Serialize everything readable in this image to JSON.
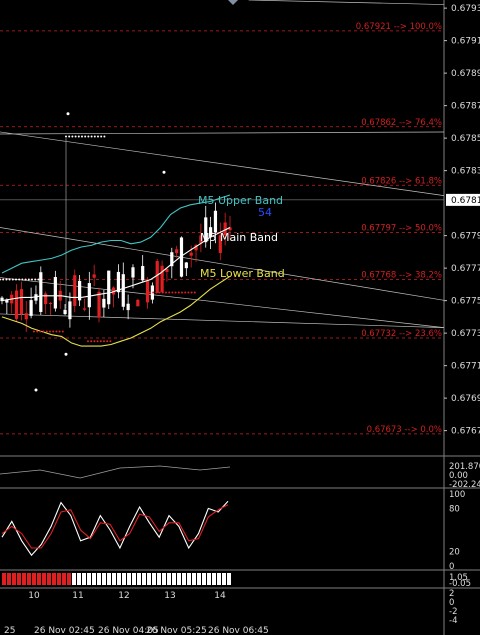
{
  "colors": {
    "background": "#000000",
    "grid": "#c0c0c0",
    "fib": "#d02020",
    "upper_band": "#3fc4c4",
    "main_band": "#ffffff",
    "lower_band": "#e6e04a",
    "candle_up": "#ffffff",
    "candle_down": "#e02020",
    "dots_white": "#ffffff",
    "dots_red": "#e02020",
    "stoch_main": "#ffffff",
    "stoch_signal": "#e02020",
    "bar_red": "#e02020",
    "bar_white": "#ffffff"
  },
  "chart_data": {
    "type": "line",
    "price_scale": [
      "0.67935",
      "0.67915",
      "0.67895",
      "0.67875",
      "0.67855",
      "0.67835",
      "0.67795",
      "0.67775",
      "0.67755",
      "0.67735",
      "0.67715",
      "0.67695",
      "0.67675"
    ],
    "current_price": "0.67817",
    "ylim": [
      0.6766,
      0.6794
    ],
    "fib_levels": [
      {
        "value": 0.67921,
        "label": "0.67921 --> 100.0%"
      },
      {
        "value": 0.67862,
        "label": "0.67862 --> 76.4%"
      },
      {
        "value": 0.67826,
        "label": "0.67826 --> 61.8%"
      },
      {
        "value": 0.67797,
        "label": "0.67797 --> 50.0%"
      },
      {
        "value": 0.67768,
        "label": "0.67768 --> 38.2%"
      },
      {
        "value": 0.67732,
        "label": "0.67732 --> 23.6%"
      },
      {
        "value": 0.67673,
        "label": "0.67673 --> 0.0%"
      }
    ],
    "band_labels": {
      "upper": "M5 Upper Band",
      "main": "M5 Main Band",
      "lower": "M5 Lower Band",
      "extra": "54"
    },
    "series": [
      {
        "name": "M5 Upper Band",
        "values": [
          0.67772,
          0.67775,
          0.67778,
          0.67779,
          0.6778,
          0.67781,
          0.67783,
          0.67786,
          0.67788,
          0.67789,
          0.67791,
          0.67792,
          0.67792,
          0.6779,
          0.67791,
          0.67794,
          0.678,
          0.67808,
          0.67812,
          0.67814,
          0.67815,
          0.67816,
          0.67818,
          0.6782
        ]
      },
      {
        "name": "M5 Main Band",
        "values": [
          0.67755,
          0.67756,
          0.67757,
          0.67757,
          0.67758,
          0.67758,
          0.67758,
          0.67757,
          0.67757,
          0.67758,
          0.67759,
          0.6776,
          0.67762,
          0.67764,
          0.67766,
          0.67768,
          0.67772,
          0.67777,
          0.67782,
          0.67786,
          0.6779,
          0.67794,
          0.67797,
          0.678
        ]
      },
      {
        "name": "M5 Lower Band",
        "values": [
          0.67745,
          0.67743,
          0.67741,
          0.67738,
          0.67736,
          0.67734,
          0.67733,
          0.67729,
          0.67727,
          0.67727,
          0.67727,
          0.67728,
          0.6773,
          0.67732,
          0.67735,
          0.67738,
          0.67742,
          0.67745,
          0.67748,
          0.67752,
          0.67757,
          0.67762,
          0.67766,
          0.6777
        ]
      }
    ],
    "stoch_scale": [
      "100",
      "80",
      "20",
      "0"
    ],
    "stoch_main": [
      40,
      62,
      35,
      15,
      30,
      55,
      88,
      70,
      35,
      40,
      70,
      50,
      25,
      55,
      82,
      60,
      40,
      70,
      55,
      25,
      45,
      80,
      75,
      90
    ],
    "stoch_signal": [
      45,
      55,
      45,
      25,
      25,
      45,
      75,
      78,
      50,
      38,
      60,
      58,
      35,
      45,
      72,
      68,
      48,
      60,
      60,
      35,
      38,
      68,
      78,
      85
    ],
    "indicator_values": [
      "201.8707",
      "0.00",
      "-202.2415"
    ],
    "bar_labels": [
      "1.05",
      "-0.05"
    ],
    "bottom_labels": [
      "2",
      "0",
      "-2",
      "-4"
    ],
    "day_labels": [
      "10",
      "11",
      "12",
      "13",
      "14"
    ],
    "time_labels": [
      "25",
      "26 Nov 02:45",
      "26 Nov 04:05",
      "26 Nov 05:25",
      "26 Nov 06:45"
    ]
  }
}
